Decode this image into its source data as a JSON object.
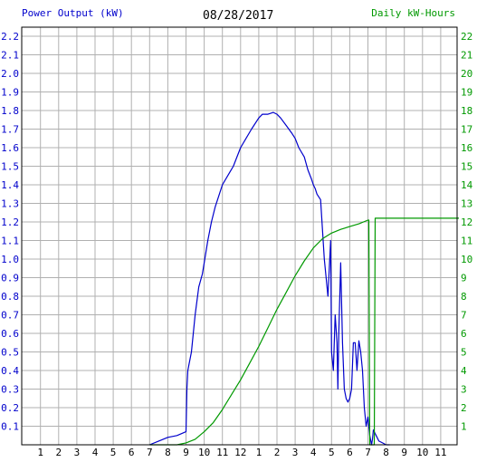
{
  "header": {
    "left_title": "Power Output (kW)",
    "date": "08/28/2017",
    "right_title": "Daily kW-Hours"
  },
  "chart_data": {
    "type": "line",
    "title": "08/28/2017",
    "grid": true,
    "x_tick_labels": [
      "1",
      "2",
      "3",
      "4",
      "5",
      "6",
      "7",
      "8",
      "9",
      "10",
      "11",
      "12",
      "1",
      "2",
      "3",
      "4",
      "5",
      "6",
      "7",
      "8",
      "9",
      "10",
      "11"
    ],
    "xlim": [
      0,
      24
    ],
    "y_left": {
      "label": "Power Output (kW)",
      "ylim": [
        0,
        2.2
      ],
      "tick_labels": [
        "0.1",
        "0.2",
        "0.3",
        "0.4",
        "0.5",
        "0.6",
        "0.7",
        "0.8",
        "0.9",
        "1.0",
        "1.1",
        "1.2",
        "1.3",
        "1.4",
        "1.5",
        "1.6",
        "1.7",
        "1.8",
        "1.9",
        "2.0",
        "2.1",
        "2.2"
      ],
      "color": "#0000cc"
    },
    "y_right": {
      "label": "Daily kW-Hours",
      "ylim": [
        0,
        22
      ],
      "tick_labels": [
        "1",
        "2",
        "3",
        "4",
        "5",
        "6",
        "7",
        "8",
        "9",
        "10",
        "11",
        "12",
        "13",
        "14",
        "15",
        "16",
        "17",
        "18",
        "19",
        "20",
        "21",
        "22"
      ],
      "color": "#009900"
    },
    "series": [
      {
        "name": "Power Output (kW)",
        "axis": "left",
        "color": "#0000cc",
        "x": [
          7.0,
          7.5,
          8.0,
          8.5,
          9.0,
          9.05,
          9.1,
          9.2,
          9.3,
          9.5,
          9.7,
          9.9,
          10.0,
          10.2,
          10.4,
          10.6,
          10.8,
          11.0,
          11.3,
          11.6,
          12.0,
          12.3,
          12.6,
          13.0,
          13.2,
          13.5,
          13.8,
          14.0,
          14.2,
          14.5,
          14.8,
          15.0,
          15.2,
          15.5,
          15.7,
          15.9,
          16.0,
          16.1,
          16.2,
          16.4,
          16.6,
          16.8,
          16.95,
          17.0,
          17.1,
          17.2,
          17.3,
          17.35,
          17.4,
          17.5,
          17.6,
          17.7,
          17.8,
          17.9,
          18.0,
          18.1,
          18.2,
          18.3,
          18.4,
          18.5,
          18.6,
          18.7,
          18.8,
          18.9,
          19.0,
          19.1,
          19.2,
          19.25,
          19.3,
          19.4,
          19.5,
          19.6,
          19.8,
          20.0,
          20.2
        ],
        "y": [
          0.0,
          0.02,
          0.04,
          0.05,
          0.07,
          0.3,
          0.4,
          0.45,
          0.5,
          0.7,
          0.85,
          0.92,
          0.98,
          1.1,
          1.2,
          1.28,
          1.34,
          1.4,
          1.45,
          1.5,
          1.6,
          1.65,
          1.7,
          1.76,
          1.78,
          1.78,
          1.79,
          1.78,
          1.76,
          1.72,
          1.68,
          1.65,
          1.6,
          1.55,
          1.48,
          1.43,
          1.4,
          1.38,
          1.35,
          1.32,
          1.0,
          0.8,
          1.1,
          0.5,
          0.4,
          0.7,
          0.55,
          0.3,
          0.6,
          0.98,
          0.55,
          0.3,
          0.25,
          0.23,
          0.25,
          0.3,
          0.55,
          0.55,
          0.4,
          0.56,
          0.5,
          0.4,
          0.2,
          0.1,
          0.15,
          0.05,
          0.0,
          0.03,
          0.08,
          0.06,
          0.04,
          0.02,
          0.01,
          0.0,
          0.0
        ]
      },
      {
        "name": "Daily kW-Hours",
        "axis": "right",
        "color": "#009900",
        "x": [
          7.0,
          8.5,
          9.0,
          9.5,
          10.0,
          10.5,
          11.0,
          11.5,
          12.0,
          12.5,
          13.0,
          13.5,
          14.0,
          14.5,
          15.0,
          15.5,
          16.0,
          16.5,
          17.0,
          17.5,
          18.0,
          18.5,
          19.0,
          19.05,
          19.1,
          19.2,
          19.3,
          19.35,
          19.4,
          20.0,
          21.0,
          22.0,
          23.0,
          24.0
        ],
        "y": [
          0.0,
          0.0,
          0.1,
          0.3,
          0.7,
          1.2,
          1.9,
          2.7,
          3.5,
          4.4,
          5.3,
          6.3,
          7.3,
          8.2,
          9.1,
          9.9,
          10.6,
          11.1,
          11.4,
          11.6,
          11.75,
          11.9,
          12.1,
          12.1,
          0.0,
          0.0,
          0.0,
          0.0,
          12.2,
          12.2,
          12.2,
          12.2,
          12.2,
          12.2
        ]
      }
    ]
  }
}
